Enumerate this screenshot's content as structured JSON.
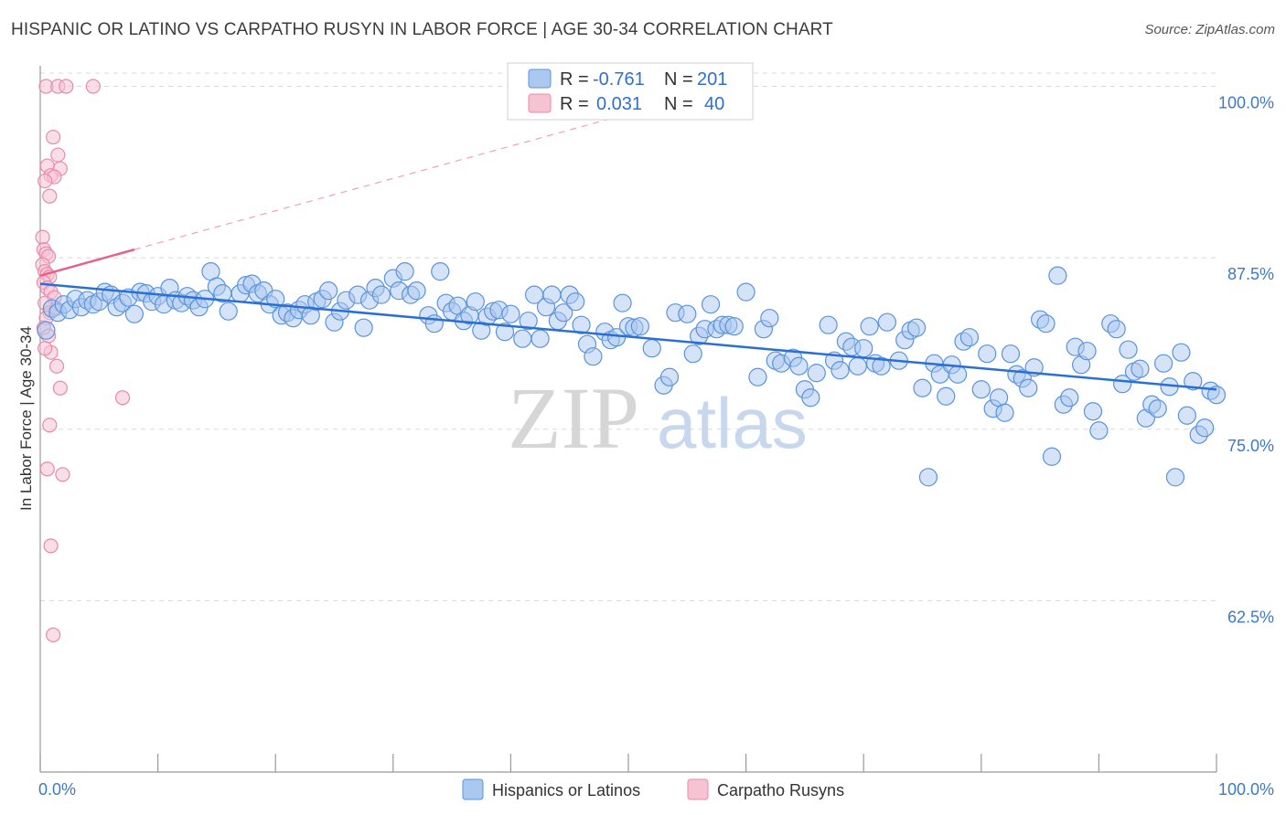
{
  "title": "HISPANIC OR LATINO VS CARPATHO RUSYN IN LABOR FORCE | AGE 30-34 CORRELATION CHART",
  "source": "Source: ZipAtlas.com",
  "watermark": {
    "zip": "ZIP",
    "atlas": "atlas"
  },
  "colors": {
    "blue_fill": "#aac8f0",
    "blue_stroke": "#5b93dc",
    "blue_line": "#2a6fd6",
    "pink_fill": "#f6c3d3",
    "pink_stroke": "#e98aa9",
    "pink_line": "#e8608a",
    "grid": "#d8d8d8",
    "tick_text": "#3d79c9"
  },
  "stats_box": {
    "rows": [
      {
        "r_label": "R =",
        "r_value": "-0.761",
        "n_label": "N =",
        "n_value": "201"
      },
      {
        "r_label": "R =",
        "r_value": "0.031",
        "n_label": "N =",
        "n_value": "40"
      }
    ]
  },
  "chart_data": {
    "type": "scatter",
    "title": "HISPANIC OR LATINO VS CARPATHO RUSYN IN LABOR FORCE | AGE 30-34 CORRELATION CHART",
    "xlabel": "",
    "ylabel": "In Labor Force | Age 30-34",
    "xlim": [
      0,
      100
    ],
    "ylim": [
      50,
      101.5
    ],
    "x_tick_labels": [
      "0.0%",
      "100.0%"
    ],
    "y_ticks": [
      62.5,
      75.0,
      87.5,
      100.0
    ],
    "y_tick_labels": [
      "62.5%",
      "75.0%",
      "87.5%",
      "100.0%"
    ],
    "grid": true,
    "legend_position": "bottom-center",
    "series": [
      {
        "name": "Hispanics or Latinos",
        "color": "blue",
        "trend": {
          "x0": 0,
          "y0": 85.6,
          "x1": 100,
          "y1": 77.9
        },
        "points": [
          [
            0.5,
            82.2
          ],
          [
            1,
            83.8
          ],
          [
            1.5,
            83.5
          ],
          [
            2,
            84.1
          ],
          [
            2.5,
            83.7
          ],
          [
            3,
            84.5
          ],
          [
            3.5,
            83.9
          ],
          [
            4,
            84.4
          ],
          [
            4.5,
            84.1
          ],
          [
            5,
            84.3
          ],
          [
            5.5,
            85.0
          ],
          [
            6,
            84.8
          ],
          [
            6.5,
            83.9
          ],
          [
            7,
            84.2
          ],
          [
            7.5,
            84.6
          ],
          [
            8,
            83.4
          ],
          [
            8.5,
            85.0
          ],
          [
            9,
            84.9
          ],
          [
            9.5,
            84.3
          ],
          [
            10,
            84.7
          ],
          [
            10.5,
            84.1
          ],
          [
            11,
            85.3
          ],
          [
            11.5,
            84.4
          ],
          [
            12,
            84.2
          ],
          [
            12.5,
            84.7
          ],
          [
            13,
            84.4
          ],
          [
            13.5,
            83.9
          ],
          [
            14,
            84.5
          ],
          [
            14.5,
            86.5
          ],
          [
            15,
            85.4
          ],
          [
            15.5,
            84.9
          ],
          [
            16,
            83.6
          ],
          [
            17,
            84.9
          ],
          [
            17.5,
            85.5
          ],
          [
            18,
            85.6
          ],
          [
            18.5,
            84.9
          ],
          [
            19,
            85.1
          ],
          [
            19.5,
            84.1
          ],
          [
            20,
            84.5
          ],
          [
            20.5,
            83.3
          ],
          [
            21,
            83.5
          ],
          [
            21.5,
            83.1
          ],
          [
            22,
            83.7
          ],
          [
            22.5,
            84.1
          ],
          [
            23,
            83.3
          ],
          [
            23.5,
            84.3
          ],
          [
            24,
            84.5
          ],
          [
            24.5,
            85.1
          ],
          [
            25,
            82.8
          ],
          [
            25.5,
            83.6
          ],
          [
            26,
            84.4
          ],
          [
            27,
            84.8
          ],
          [
            27.5,
            82.4
          ],
          [
            28,
            84.4
          ],
          [
            28.5,
            85.3
          ],
          [
            29,
            84.8
          ],
          [
            30,
            86.0
          ],
          [
            30.5,
            85.1
          ],
          [
            31,
            86.5
          ],
          [
            31.5,
            84.8
          ],
          [
            32,
            85.1
          ],
          [
            33,
            83.3
          ],
          [
            33.5,
            82.7
          ],
          [
            34,
            86.5
          ],
          [
            34.5,
            84.2
          ],
          [
            35,
            83.6
          ],
          [
            35.5,
            84.0
          ],
          [
            36,
            82.9
          ],
          [
            36.5,
            83.3
          ],
          [
            37,
            84.3
          ],
          [
            37.5,
            82.2
          ],
          [
            38,
            83.2
          ],
          [
            38.5,
            83.6
          ],
          [
            39,
            83.7
          ],
          [
            39.5,
            82.1
          ],
          [
            40,
            83.4
          ],
          [
            41,
            81.6
          ],
          [
            41.5,
            82.9
          ],
          [
            42,
            84.8
          ],
          [
            42.5,
            81.6
          ],
          [
            43,
            83.9
          ],
          [
            43.5,
            84.8
          ],
          [
            44,
            82.9
          ],
          [
            44.5,
            83.5
          ],
          [
            45,
            84.8
          ],
          [
            45.5,
            84.3
          ],
          [
            46,
            82.6
          ],
          [
            46.5,
            81.2
          ],
          [
            47,
            80.3
          ],
          [
            48,
            82.1
          ],
          [
            48.5,
            81.5
          ],
          [
            49,
            81.7
          ],
          [
            49.5,
            84.2
          ],
          [
            50,
            82.5
          ],
          [
            50.5,
            82.4
          ],
          [
            51,
            82.5
          ],
          [
            52,
            80.9
          ],
          [
            53,
            78.2
          ],
          [
            53.5,
            78.8
          ],
          [
            54,
            83.5
          ],
          [
            55,
            83.4
          ],
          [
            55.5,
            80.5
          ],
          [
            56,
            81.8
          ],
          [
            56.5,
            82.3
          ],
          [
            57,
            84.1
          ],
          [
            57.5,
            82.3
          ],
          [
            58,
            82.6
          ],
          [
            58.5,
            82.6
          ],
          [
            59,
            82.5
          ],
          [
            60,
            85.0
          ],
          [
            61,
            78.8
          ],
          [
            61.5,
            82.3
          ],
          [
            62,
            83.1
          ],
          [
            62.5,
            80.0
          ],
          [
            63,
            79.8
          ],
          [
            64,
            80.2
          ],
          [
            64.5,
            79.6
          ],
          [
            65,
            77.9
          ],
          [
            65.5,
            77.3
          ],
          [
            66,
            79.1
          ],
          [
            67,
            82.6
          ],
          [
            67.5,
            80.0
          ],
          [
            68,
            79.3
          ],
          [
            68.5,
            81.4
          ],
          [
            69,
            81.0
          ],
          [
            69.5,
            79.6
          ],
          [
            70,
            80.9
          ],
          [
            70.5,
            82.5
          ],
          [
            71,
            79.8
          ],
          [
            71.5,
            79.6
          ],
          [
            72,
            82.8
          ],
          [
            73,
            80.0
          ],
          [
            73.5,
            81.5
          ],
          [
            74,
            82.2
          ],
          [
            74.5,
            82.4
          ],
          [
            75,
            78.0
          ],
          [
            76,
            79.8
          ],
          [
            76.5,
            79.0
          ],
          [
            77,
            77.4
          ],
          [
            77.5,
            79.7
          ],
          [
            78,
            79.0
          ],
          [
            78.5,
            81.4
          ],
          [
            79,
            81.7
          ],
          [
            80,
            77.9
          ],
          [
            80.5,
            80.5
          ],
          [
            81,
            76.5
          ],
          [
            81.5,
            77.3
          ],
          [
            82,
            76.2
          ],
          [
            82.5,
            80.5
          ],
          [
            83,
            79.0
          ],
          [
            83.5,
            78.7
          ],
          [
            84,
            78.0
          ],
          [
            84.5,
            79.5
          ],
          [
            85,
            83.0
          ],
          [
            85.5,
            82.7
          ],
          [
            86,
            73.0
          ],
          [
            86.5,
            86.2
          ],
          [
            87,
            76.8
          ],
          [
            87.5,
            77.3
          ],
          [
            88,
            81.0
          ],
          [
            88.5,
            79.7
          ],
          [
            89,
            80.7
          ],
          [
            89.5,
            76.3
          ],
          [
            90,
            74.9
          ],
          [
            91,
            82.7
          ],
          [
            91.5,
            82.3
          ],
          [
            92,
            78.3
          ],
          [
            92.5,
            80.8
          ],
          [
            93,
            79.2
          ],
          [
            93.5,
            79.4
          ],
          [
            94,
            75.8
          ],
          [
            94.5,
            76.8
          ],
          [
            95,
            76.5
          ],
          [
            95.5,
            79.8
          ],
          [
            96,
            78.1
          ],
          [
            97,
            80.6
          ],
          [
            97.5,
            76.0
          ],
          [
            98,
            78.5
          ],
          [
            98.5,
            74.6
          ],
          [
            99,
            75.1
          ],
          [
            99.5,
            77.8
          ],
          [
            100,
            77.5
          ],
          [
            75.5,
            71.5
          ],
          [
            96.5,
            71.5
          ]
        ]
      },
      {
        "name": "Carpatho Rusyns",
        "color": "pink",
        "trend": {
          "x0": 0,
          "y0": 86.2,
          "x1": 8,
          "y1": 88.1
        },
        "trend_extension": {
          "x0": 8,
          "y0": 88.1,
          "x1": 50,
          "y1": 98.0
        },
        "points": [
          [
            0.5,
            100.0
          ],
          [
            1.5,
            100.0
          ],
          [
            2.2,
            100.0
          ],
          [
            4.5,
            100.0
          ],
          [
            1.1,
            96.3
          ],
          [
            1.5,
            95.0
          ],
          [
            1.7,
            94.0
          ],
          [
            0.6,
            94.2
          ],
          [
            0.9,
            93.5
          ],
          [
            1.2,
            93.4
          ],
          [
            0.4,
            93.1
          ],
          [
            0.8,
            92.0
          ],
          [
            0.2,
            89.0
          ],
          [
            0.3,
            88.1
          ],
          [
            0.5,
            87.8
          ],
          [
            0.7,
            87.6
          ],
          [
            0.2,
            87.0
          ],
          [
            0.4,
            86.5
          ],
          [
            0.6,
            86.3
          ],
          [
            0.8,
            86.1
          ],
          [
            0.3,
            85.7
          ],
          [
            0.6,
            85.3
          ],
          [
            0.9,
            85.0
          ],
          [
            1.2,
            84.6
          ],
          [
            0.4,
            84.2
          ],
          [
            0.8,
            83.5
          ],
          [
            1.4,
            83.8
          ],
          [
            0.5,
            83.1
          ],
          [
            0.3,
            82.4
          ],
          [
            0.7,
            81.8
          ],
          [
            0.9,
            80.6
          ],
          [
            1.4,
            79.6
          ],
          [
            1.7,
            78.0
          ],
          [
            7.0,
            77.3
          ],
          [
            0.8,
            75.3
          ],
          [
            0.6,
            72.1
          ],
          [
            1.9,
            71.7
          ],
          [
            0.9,
            66.5
          ],
          [
            1.1,
            60.0
          ],
          [
            0.4,
            80.9
          ]
        ]
      }
    ]
  },
  "legend": {
    "items": [
      "Hispanics or Latinos",
      "Carpatho Rusyns"
    ]
  }
}
